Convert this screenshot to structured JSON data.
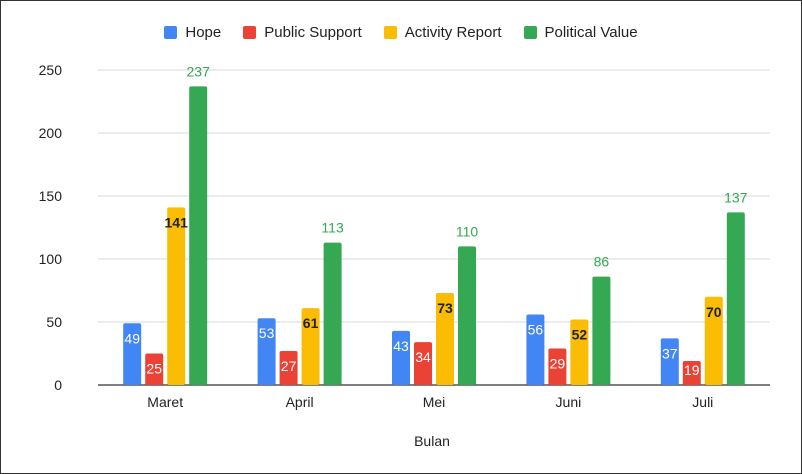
{
  "chart_data": {
    "type": "bar",
    "title": "",
    "xlabel": "Bulan",
    "ylabel": "",
    "ylim": [
      0,
      250
    ],
    "yticks": [
      0,
      50,
      100,
      150,
      200,
      250
    ],
    "grid": true,
    "legend_position": "top",
    "categories": [
      "Maret",
      "April",
      "Mei",
      "Juni",
      "Juli"
    ],
    "series": [
      {
        "name": "Hope",
        "color": "#4285F4",
        "label_color": "#ffffff",
        "label_inside": true,
        "values": [
          49,
          53,
          43,
          56,
          37
        ]
      },
      {
        "name": "Public Support",
        "color": "#EA4335",
        "label_color": "#ffffff",
        "label_inside": true,
        "values": [
          25,
          27,
          34,
          29,
          19
        ]
      },
      {
        "name": "Activity Report",
        "color": "#FBBC04",
        "label_color": "#222222",
        "label_inside": true,
        "values": [
          141,
          61,
          73,
          52,
          70
        ]
      },
      {
        "name": "Political Value",
        "color": "#34A853",
        "label_color": "#34A853",
        "label_inside": false,
        "values": [
          237,
          113,
          110,
          86,
          137
        ]
      }
    ]
  }
}
